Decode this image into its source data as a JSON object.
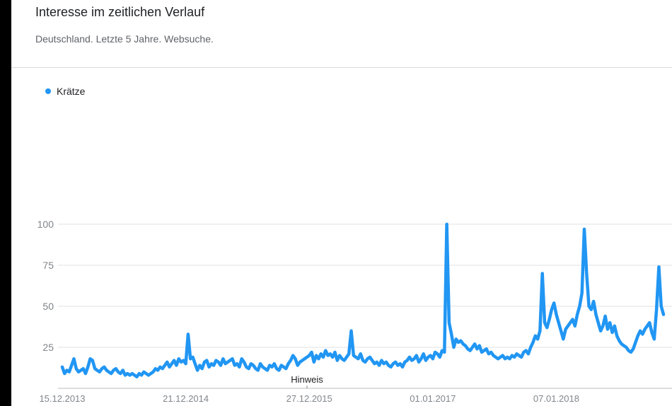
{
  "header": {
    "title": "Interesse im zeitlichen Verlauf",
    "subtitle": "Deutschland. Letzte 5 Jahre. Websuche."
  },
  "legend": {
    "label": "Krätze",
    "color": "#2196f3"
  },
  "annotation": {
    "label": "Hinweis"
  },
  "chart_data": {
    "type": "line",
    "title": "Interesse im zeitlichen Verlauf",
    "subtitle": "Deutschland. Letzte 5 Jahre. Websuche.",
    "xlabel": "",
    "ylabel": "",
    "ylim": [
      0,
      100
    ],
    "yticks": [
      25,
      50,
      75,
      100
    ],
    "xticks": [
      {
        "label": "15.12.2013",
        "index": 0
      },
      {
        "label": "21.12.2014",
        "index": 53
      },
      {
        "label": "27.12.2015",
        "index": 106
      },
      {
        "label": "01.01.2017",
        "index": 159
      },
      {
        "label": "07.01.2018",
        "index": 212
      }
    ],
    "grid": true,
    "legend_position": "top-left",
    "series": [
      {
        "name": "Krätze",
        "color": "#2196f3",
        "values": [
          13,
          9,
          11,
          10,
          14,
          18,
          12,
          10,
          11,
          12,
          9,
          13,
          18,
          17,
          12,
          11,
          10,
          12,
          13,
          11,
          10,
          9,
          11,
          12,
          10,
          9,
          11,
          8,
          9,
          8,
          9,
          8,
          7,
          9,
          8,
          10,
          9,
          8,
          9,
          10,
          12,
          11,
          13,
          12,
          14,
          16,
          13,
          15,
          17,
          14,
          18,
          16,
          17,
          15,
          33,
          18,
          19,
          15,
          11,
          14,
          12,
          16,
          17,
          13,
          15,
          14,
          17,
          16,
          14,
          18,
          15,
          16,
          17,
          18,
          14,
          15,
          13,
          18,
          16,
          13,
          12,
          15,
          14,
          12,
          11,
          15,
          13,
          12,
          11,
          14,
          13,
          15,
          12,
          11,
          14,
          13,
          12,
          15,
          17,
          20,
          18,
          14,
          16,
          17,
          18,
          19,
          20,
          22,
          16,
          20,
          18,
          21,
          19,
          23,
          20,
          21,
          19,
          22,
          17,
          20,
          18,
          17,
          19,
          21,
          35,
          20,
          19,
          18,
          21,
          17,
          16,
          18,
          19,
          17,
          15,
          16,
          14,
          17,
          15,
          16,
          14,
          13,
          15,
          16,
          14,
          15,
          13,
          16,
          17,
          19,
          17,
          18,
          20,
          16,
          18,
          21,
          17,
          19,
          20,
          18,
          22,
          21,
          19,
          23,
          22,
          100,
          40,
          33,
          25,
          30,
          28,
          29,
          27,
          26,
          24,
          23,
          25,
          27,
          24,
          26,
          22,
          23,
          24,
          21,
          22,
          20,
          19,
          18,
          19,
          20,
          18,
          19,
          18,
          20,
          19,
          21,
          20,
          19,
          22,
          23,
          21,
          25,
          28,
          32,
          30,
          35,
          70,
          40,
          37,
          42,
          48,
          52,
          45,
          40,
          35,
          30,
          36,
          38,
          40,
          42,
          38,
          45,
          50,
          58,
          97,
          70,
          50,
          48,
          53,
          45,
          40,
          35,
          38,
          44,
          36,
          40,
          34,
          38,
          32,
          29,
          27,
          26,
          25,
          23,
          22,
          24,
          28,
          32,
          35,
          33,
          36,
          38,
          40,
          34,
          30,
          48,
          74,
          50,
          45
        ]
      }
    ]
  }
}
